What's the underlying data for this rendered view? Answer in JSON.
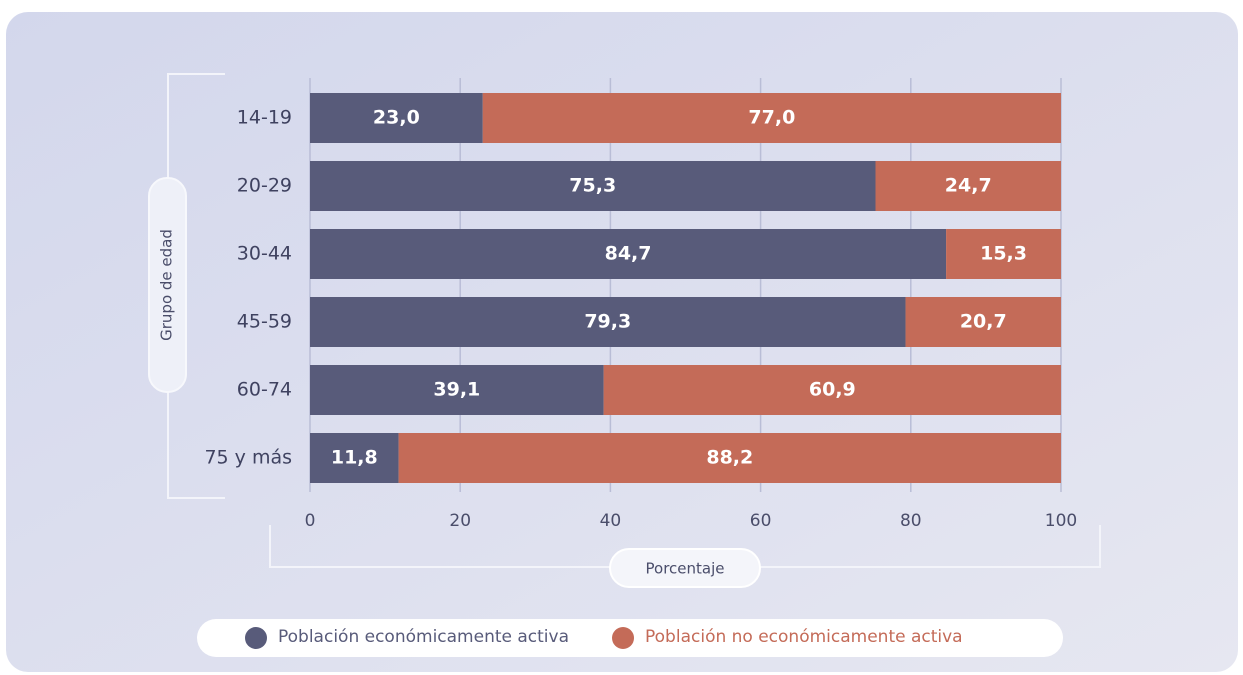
{
  "chart_data": {
    "type": "stacked-bar-horizontal",
    "categories": [
      "14-19",
      "20-29",
      "30-44",
      "45-59",
      "60-74",
      "75 y más"
    ],
    "series": [
      {
        "name": "Población económicamente activa",
        "color": "#585b7a",
        "values": [
          23.0,
          75.3,
          84.7,
          79.3,
          39.1,
          11.8
        ],
        "value_labels": [
          "23,0",
          "75,3",
          "84,7",
          "79,3",
          "39,1",
          "11,8"
        ]
      },
      {
        "name": "Población no económicamente activa",
        "color": "#c46b58",
        "values": [
          77.0,
          24.7,
          15.3,
          20.7,
          60.9,
          88.2
        ],
        "value_labels": [
          "77,0",
          "24,7",
          "15,3",
          "20,7",
          "60,9",
          "88,2"
        ]
      }
    ],
    "xlim": [
      0,
      100
    ],
    "xticks": [
      0,
      20,
      40,
      60,
      80,
      100
    ],
    "xlabel": "Porcentaje",
    "ylabel": "Grupo de edad",
    "grid": true,
    "legend": "bottom"
  }
}
